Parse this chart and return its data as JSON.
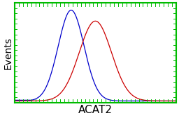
{
  "title": "",
  "xlabel": "ACAT2",
  "ylabel": "Events",
  "bg_color": "#ffffff",
  "border_color": "#00bb00",
  "blue_color": "#0000cc",
  "red_color": "#cc0000",
  "blue_mean": 0.35,
  "blue_std": 0.08,
  "red_mean": 0.5,
  "red_std": 0.1,
  "xlabel_fontsize": 11,
  "ylabel_fontsize": 10,
  "figsize": [
    2.56,
    1.7
  ],
  "dpi": 100
}
